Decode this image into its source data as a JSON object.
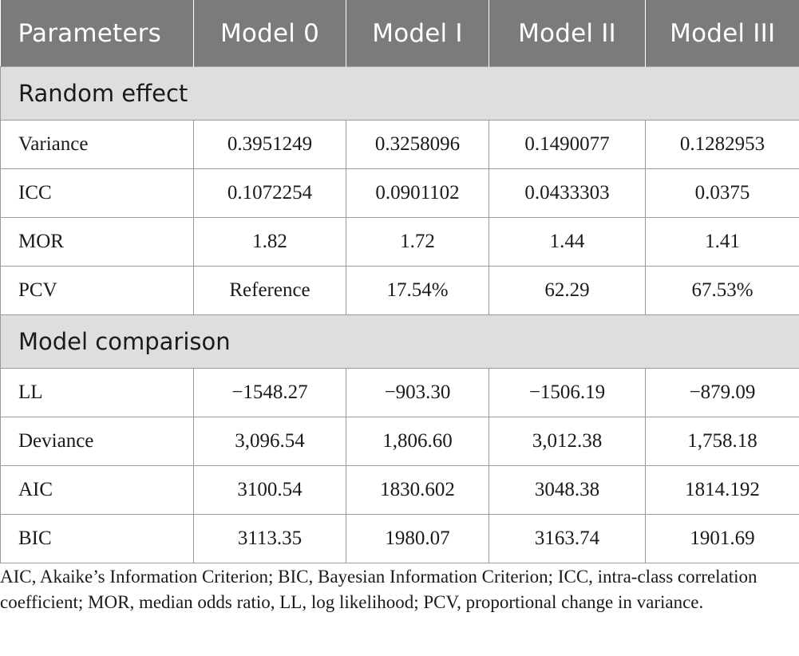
{
  "table": {
    "headers": [
      "Parameters",
      "Model 0",
      "Model I",
      "Model II",
      "Model III"
    ],
    "sections": [
      {
        "title": "Random effect",
        "rows": [
          {
            "label": "Variance",
            "values": [
              "0.3951249",
              "0.3258096",
              "0.1490077",
              "0.1282953"
            ]
          },
          {
            "label": "ICC",
            "values": [
              "0.1072254",
              "0.0901102",
              "0.0433303",
              "0.0375"
            ]
          },
          {
            "label": "MOR",
            "values": [
              "1.82",
              "1.72",
              "1.44",
              "1.41"
            ]
          },
          {
            "label": "PCV",
            "values": [
              "Reference",
              "17.54%",
              "62.29",
              "67.53%"
            ]
          }
        ]
      },
      {
        "title": "Model comparison",
        "rows": [
          {
            "label": "LL",
            "values": [
              "−1548.27",
              "−903.30",
              "−1506.19",
              "−879.09"
            ]
          },
          {
            "label": "Deviance",
            "values": [
              "3,096.54",
              "1,806.60",
              "3,012.38",
              "1,758.18"
            ]
          },
          {
            "label": "AIC",
            "values": [
              "3100.54",
              "1830.602",
              "3048.38",
              "1814.192"
            ]
          },
          {
            "label": "BIC",
            "values": [
              "3113.35",
              "1980.07",
              "3163.74",
              "1901.69"
            ]
          }
        ]
      }
    ]
  },
  "footnote": "AIC, Akaike’s Information Criterion; BIC, Bayesian Information Criterion; ICC, intra-class correlation coefficient; MOR, median odds ratio, LL, log likelihood; PCV, proportional change in variance."
}
